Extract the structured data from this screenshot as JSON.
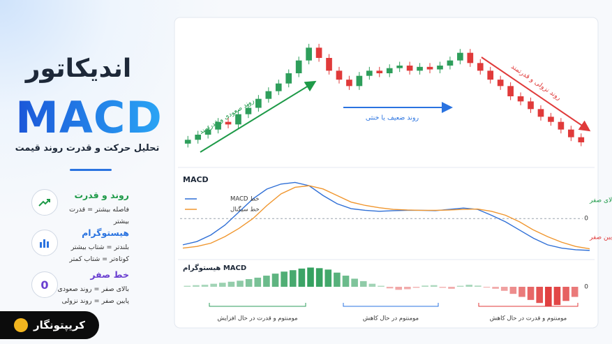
{
  "header": {
    "title": "اندیکاتور",
    "brand": "MACD",
    "subtitle": "تحلیل حرکت و قدرت روند قیمت"
  },
  "items": [
    {
      "icon_text": null,
      "title": "روند و قدرت",
      "lines": [
        "فاصله بیشتر = قدرت بیشتر"
      ]
    },
    {
      "icon_text": null,
      "title": "هیستوگرام",
      "lines": [
        "بلندتر = شتاب بیشتر",
        "کوتاه‌تر = شتاب کمتر"
      ]
    },
    {
      "icon_text": "0",
      "title": "خط صفر",
      "lines": [
        "بالای صفر = روند صعودی",
        "پایین صفر = روند نزولی"
      ]
    }
  ],
  "logo": "کریپتونگار",
  "chart_data": [
    {
      "type": "candlestick",
      "up_color": "#2e9e5b",
      "down_color": "#e03a3a",
      "open": [
        5,
        8,
        12,
        16,
        22,
        20,
        28,
        33,
        40,
        46,
        52,
        60,
        70,
        80,
        72,
        62,
        55,
        50,
        58,
        62,
        60,
        64,
        66,
        62,
        65,
        63,
        66,
        70,
        76,
        68,
        62,
        55,
        50,
        42,
        38,
        32,
        26,
        22,
        16,
        10
      ],
      "close": [
        8,
        12,
        16,
        22,
        20,
        28,
        33,
        40,
        46,
        52,
        60,
        70,
        80,
        72,
        62,
        55,
        50,
        58,
        62,
        60,
        64,
        66,
        62,
        65,
        63,
        66,
        70,
        76,
        68,
        62,
        55,
        50,
        42,
        38,
        32,
        26,
        22,
        16,
        10,
        6
      ],
      "high": [
        11,
        15,
        19,
        25,
        25,
        31,
        36,
        43,
        49,
        55,
        63,
        73,
        83,
        83,
        75,
        65,
        58,
        61,
        65,
        65,
        67,
        69,
        69,
        68,
        68,
        69,
        73,
        79,
        79,
        71,
        65,
        58,
        53,
        45,
        41,
        35,
        29,
        25,
        19,
        13
      ],
      "low": [
        2,
        5,
        9,
        13,
        17,
        17,
        25,
        30,
        37,
        43,
        49,
        57,
        67,
        69,
        59,
        52,
        47,
        47,
        55,
        57,
        57,
        61,
        59,
        59,
        60,
        60,
        63,
        67,
        65,
        59,
        52,
        47,
        39,
        35,
        29,
        23,
        19,
        13,
        7,
        3
      ],
      "ylim": [
        0,
        90
      ],
      "annotations": [
        "روند صعودی و قدرتمند",
        "روند ضعیف یا خنثی",
        "روند نزولی و قدرتمند"
      ]
    },
    {
      "type": "line",
      "title": "MACD",
      "series": [
        {
          "name": "خط MACD",
          "color": "#2f6fd6",
          "values": [
            -0.8,
            -0.7,
            -0.5,
            -0.2,
            0.2,
            0.6,
            0.9,
            1.05,
            1.1,
            1.0,
            0.7,
            0.45,
            0.3,
            0.25,
            0.22,
            0.24,
            0.25,
            0.25,
            0.24,
            0.28,
            0.32,
            0.28,
            0.1,
            -0.1,
            -0.35,
            -0.6,
            -0.8,
            -0.9,
            -0.95,
            -0.97
          ]
        },
        {
          "name": "خط سیگنال",
          "color": "#f0962e",
          "values": [
            -0.9,
            -0.85,
            -0.75,
            -0.55,
            -0.3,
            0.0,
            0.4,
            0.75,
            0.95,
            1.0,
            0.9,
            0.7,
            0.5,
            0.4,
            0.33,
            0.28,
            0.26,
            0.25,
            0.25,
            0.26,
            0.28,
            0.29,
            0.22,
            0.1,
            -0.1,
            -0.35,
            -0.55,
            -0.72,
            -0.85,
            -0.92
          ]
        }
      ],
      "ylim": [
        -1.1,
        1.3
      ],
      "yticks": [
        0
      ],
      "annotations": [
        "بالای صفر",
        "پایین صفر"
      ]
    },
    {
      "type": "histogram",
      "title": "هیستوگرام MACD",
      "positive_color": "#2e9e5b",
      "negative_color": "#e03a3a",
      "values": [
        0.05,
        0.08,
        0.1,
        0.15,
        0.2,
        0.25,
        0.3,
        0.38,
        0.45,
        0.55,
        0.65,
        0.75,
        0.82,
        0.9,
        0.95,
        0.92,
        0.85,
        0.7,
        0.55,
        0.4,
        0.28,
        0.15,
        0.05,
        -0.08,
        -0.15,
        -0.12,
        -0.05,
        0.06,
        0.08,
        -0.05,
        -0.1,
        0.05,
        0.1,
        0.06,
        -0.04,
        -0.1,
        -0.2,
        -0.35,
        -0.5,
        -0.65,
        -0.8,
        -0.95,
        -0.9,
        -0.7,
        -0.5
      ],
      "ylim": [
        -1,
        1
      ],
      "yticks": [
        0
      ],
      "annotations": [
        "مومنتوم و قدرت در حال افزایش",
        "مومنتوم در حال کاهش",
        "مومنتوم و قدرت در حال کاهش"
      ]
    }
  ]
}
